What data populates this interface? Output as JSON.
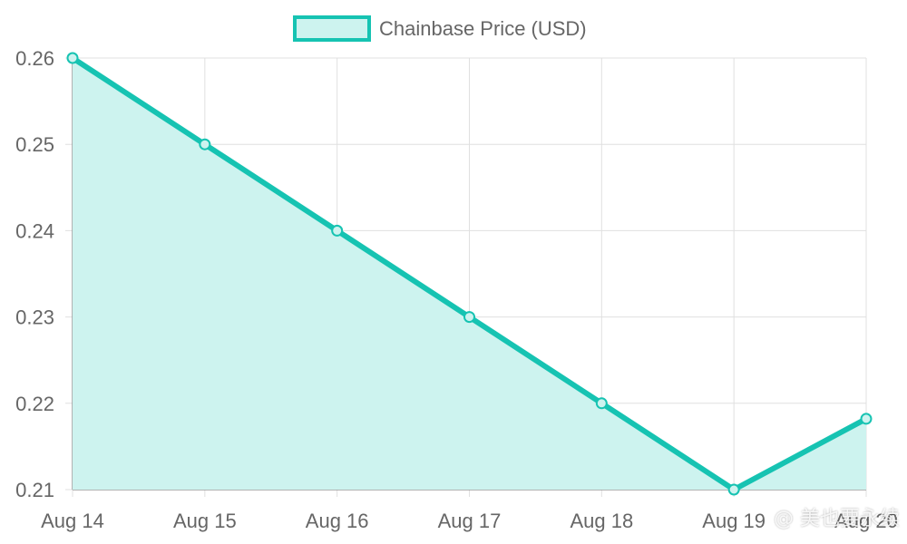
{
  "chart_data": {
    "type": "area",
    "categories": [
      "Aug 14",
      "Aug 15",
      "Aug 16",
      "Aug 17",
      "Aug 18",
      "Aug 19",
      "Aug 20"
    ],
    "series": [
      {
        "name": "Chainbase Price (USD)",
        "values": [
          0.26,
          0.25,
          0.24,
          0.23,
          0.22,
          0.21,
          0.2182
        ]
      }
    ],
    "ylim": [
      0.21,
      0.26
    ],
    "yticks": [
      "0.26",
      "0.25",
      "0.24",
      "0.23",
      "0.22",
      "0.21"
    ],
    "grid": true,
    "legend_position": "top-center",
    "colors": {
      "line": "#16c3b2",
      "fill": "#cdf3ef",
      "grid": "#e0e0e0",
      "axis": "#999999"
    }
  },
  "watermark": "@ 美也要永续"
}
